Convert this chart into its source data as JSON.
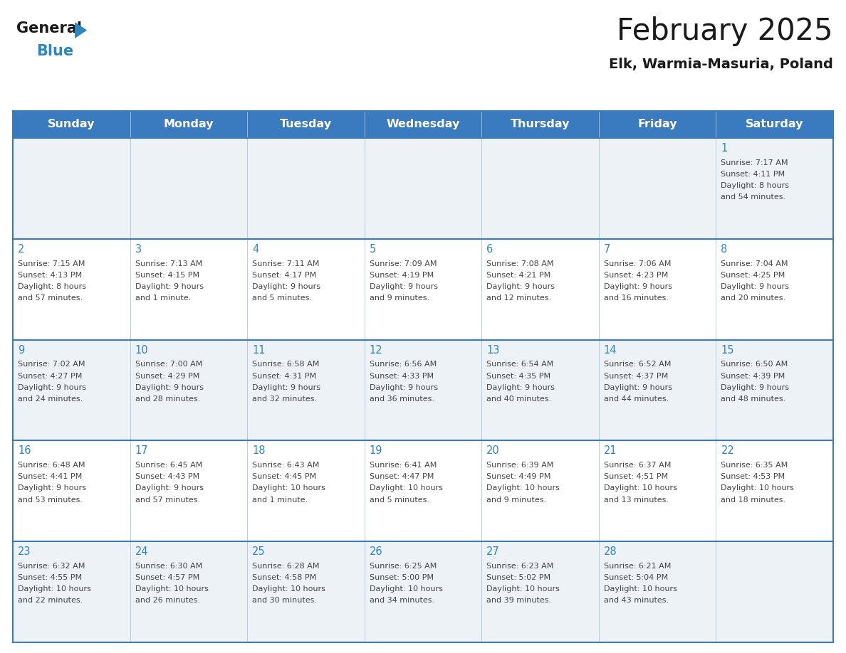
{
  "title": "February 2025",
  "subtitle": "Elk, Warmia-Masuria, Poland",
  "header_bg_color": "#3a7bbf",
  "header_text_color": "#ffffff",
  "cell_bg_color_light": "#edf2f7",
  "cell_bg_color_white": "#ffffff",
  "grid_color": "#3a7bbf",
  "cell_border_color": "#b0c4d8",
  "day_names": [
    "Sunday",
    "Monday",
    "Tuesday",
    "Wednesday",
    "Thursday",
    "Friday",
    "Saturday"
  ],
  "days": [
    {
      "day": 1,
      "col": 6,
      "row": 0,
      "sunrise": "7:17 AM",
      "sunset": "4:11 PM",
      "daylight": "8 hours and 54 minutes."
    },
    {
      "day": 2,
      "col": 0,
      "row": 1,
      "sunrise": "7:15 AM",
      "sunset": "4:13 PM",
      "daylight": "8 hours and 57 minutes."
    },
    {
      "day": 3,
      "col": 1,
      "row": 1,
      "sunrise": "7:13 AM",
      "sunset": "4:15 PM",
      "daylight": "9 hours and 1 minute."
    },
    {
      "day": 4,
      "col": 2,
      "row": 1,
      "sunrise": "7:11 AM",
      "sunset": "4:17 PM",
      "daylight": "9 hours and 5 minutes."
    },
    {
      "day": 5,
      "col": 3,
      "row": 1,
      "sunrise": "7:09 AM",
      "sunset": "4:19 PM",
      "daylight": "9 hours and 9 minutes."
    },
    {
      "day": 6,
      "col": 4,
      "row": 1,
      "sunrise": "7:08 AM",
      "sunset": "4:21 PM",
      "daylight": "9 hours and 12 minutes."
    },
    {
      "day": 7,
      "col": 5,
      "row": 1,
      "sunrise": "7:06 AM",
      "sunset": "4:23 PM",
      "daylight": "9 hours and 16 minutes."
    },
    {
      "day": 8,
      "col": 6,
      "row": 1,
      "sunrise": "7:04 AM",
      "sunset": "4:25 PM",
      "daylight": "9 hours and 20 minutes."
    },
    {
      "day": 9,
      "col": 0,
      "row": 2,
      "sunrise": "7:02 AM",
      "sunset": "4:27 PM",
      "daylight": "9 hours and 24 minutes."
    },
    {
      "day": 10,
      "col": 1,
      "row": 2,
      "sunrise": "7:00 AM",
      "sunset": "4:29 PM",
      "daylight": "9 hours and 28 minutes."
    },
    {
      "day": 11,
      "col": 2,
      "row": 2,
      "sunrise": "6:58 AM",
      "sunset": "4:31 PM",
      "daylight": "9 hours and 32 minutes."
    },
    {
      "day": 12,
      "col": 3,
      "row": 2,
      "sunrise": "6:56 AM",
      "sunset": "4:33 PM",
      "daylight": "9 hours and 36 minutes."
    },
    {
      "day": 13,
      "col": 4,
      "row": 2,
      "sunrise": "6:54 AM",
      "sunset": "4:35 PM",
      "daylight": "9 hours and 40 minutes."
    },
    {
      "day": 14,
      "col": 5,
      "row": 2,
      "sunrise": "6:52 AM",
      "sunset": "4:37 PM",
      "daylight": "9 hours and 44 minutes."
    },
    {
      "day": 15,
      "col": 6,
      "row": 2,
      "sunrise": "6:50 AM",
      "sunset": "4:39 PM",
      "daylight": "9 hours and 48 minutes."
    },
    {
      "day": 16,
      "col": 0,
      "row": 3,
      "sunrise": "6:48 AM",
      "sunset": "4:41 PM",
      "daylight": "9 hours and 53 minutes."
    },
    {
      "day": 17,
      "col": 1,
      "row": 3,
      "sunrise": "6:45 AM",
      "sunset": "4:43 PM",
      "daylight": "9 hours and 57 minutes."
    },
    {
      "day": 18,
      "col": 2,
      "row": 3,
      "sunrise": "6:43 AM",
      "sunset": "4:45 PM",
      "daylight": "10 hours and 1 minute."
    },
    {
      "day": 19,
      "col": 3,
      "row": 3,
      "sunrise": "6:41 AM",
      "sunset": "4:47 PM",
      "daylight": "10 hours and 5 minutes."
    },
    {
      "day": 20,
      "col": 4,
      "row": 3,
      "sunrise": "6:39 AM",
      "sunset": "4:49 PM",
      "daylight": "10 hours and 9 minutes."
    },
    {
      "day": 21,
      "col": 5,
      "row": 3,
      "sunrise": "6:37 AM",
      "sunset": "4:51 PM",
      "daylight": "10 hours and 13 minutes."
    },
    {
      "day": 22,
      "col": 6,
      "row": 3,
      "sunrise": "6:35 AM",
      "sunset": "4:53 PM",
      "daylight": "10 hours and 18 minutes."
    },
    {
      "day": 23,
      "col": 0,
      "row": 4,
      "sunrise": "6:32 AM",
      "sunset": "4:55 PM",
      "daylight": "10 hours and 22 minutes."
    },
    {
      "day": 24,
      "col": 1,
      "row": 4,
      "sunrise": "6:30 AM",
      "sunset": "4:57 PM",
      "daylight": "10 hours and 26 minutes."
    },
    {
      "day": 25,
      "col": 2,
      "row": 4,
      "sunrise": "6:28 AM",
      "sunset": "4:58 PM",
      "daylight": "10 hours and 30 minutes."
    },
    {
      "day": 26,
      "col": 3,
      "row": 4,
      "sunrise": "6:25 AM",
      "sunset": "5:00 PM",
      "daylight": "10 hours and 34 minutes."
    },
    {
      "day": 27,
      "col": 4,
      "row": 4,
      "sunrise": "6:23 AM",
      "sunset": "5:02 PM",
      "daylight": "10 hours and 39 minutes."
    },
    {
      "day": 28,
      "col": 5,
      "row": 4,
      "sunrise": "6:21 AM",
      "sunset": "5:04 PM",
      "daylight": "10 hours and 43 minutes."
    }
  ],
  "num_rows": 5,
  "num_cols": 7,
  "logo_color_general": "#1a1a1a",
  "logo_color_blue": "#2e86c1",
  "logo_triangle_color": "#2e86c1",
  "day_number_color": "#2e86c1",
  "cell_text_color": "#444444",
  "cell_text_fontsize": 8.0,
  "day_number_fontsize": 10.5,
  "header_fontsize": 11.5,
  "title_fontsize": 30,
  "subtitle_fontsize": 14
}
